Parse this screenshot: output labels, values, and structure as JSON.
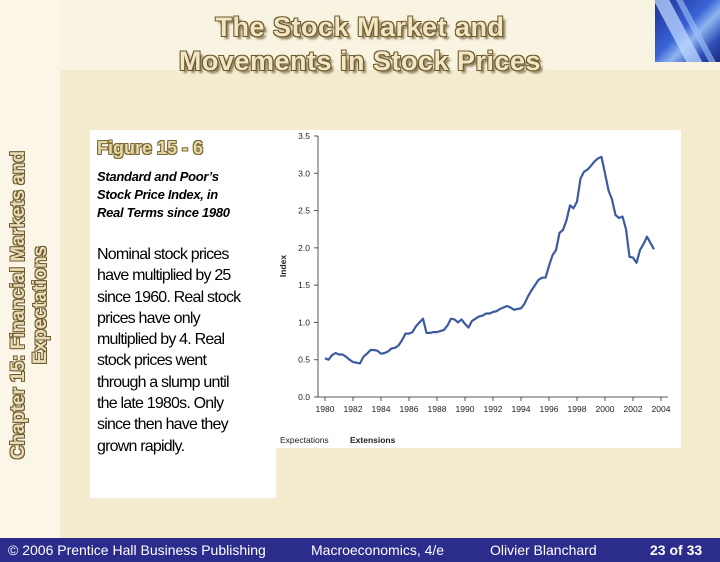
{
  "slide": {
    "title_line1": "The Stock Market and",
    "title_line2": "Movements in Stock Prices",
    "chapter_line1": "Chapter 15: Financial Markets and",
    "chapter_line2": "Expectations"
  },
  "figure": {
    "number": "Figure 15 - 6",
    "caption_line1": "Standard and Poor’s",
    "caption_line2": "Stock Price Index, in",
    "caption_line3": "Real Terms since 1980",
    "body_lines": [
      "Nominal stock prices",
      "have multiplied by 25",
      "since 1960.  Real stock",
      "prices have only",
      "multiplied by 4.  Real",
      "stock prices went",
      "through a slump until",
      "the late 1980s.  Only",
      "since then have they",
      "grown rapidly."
    ]
  },
  "footer": {
    "copyright": "© 2006 Prentice Hall Business Publishing",
    "book": "Macroeconomics, 4/e",
    "author": "Olivier Blanchard",
    "page": "23 of 33"
  },
  "chart_data": {
    "type": "line",
    "ylabel": "Index",
    "xlim": [
      1979.5,
      2004.5
    ],
    "ylim": [
      0,
      3.5
    ],
    "x_ticks": [
      1980,
      1982,
      1984,
      1986,
      1988,
      1990,
      1992,
      1994,
      1996,
      1998,
      2000,
      2002,
      2004
    ],
    "y_ticks": [
      "0.0",
      "0.5",
      "1.0",
      "1.5",
      "2.0",
      "2.5",
      "3.0",
      "3.5"
    ],
    "footer_left": "Expectations",
    "footer_right": "Extensions",
    "colors": {
      "line": "#3b5aa0",
      "axis": "#555555"
    },
    "series": [
      {
        "x": [
          1980,
          1980.25,
          1980.5,
          1980.75,
          1981,
          1981.25,
          1981.5,
          1981.75,
          1982,
          1982.25,
          1982.5,
          1982.75,
          1983,
          1983.25,
          1983.5,
          1983.75,
          1984,
          1984.25,
          1984.5,
          1984.75,
          1985,
          1985.25,
          1985.5,
          1985.75,
          1986,
          1986.25,
          1986.5,
          1986.75,
          1987,
          1987.25,
          1987.5,
          1987.75,
          1988,
          1988.5,
          1988.75,
          1989,
          1989.25,
          1989.5,
          1989.75,
          1990,
          1990.25,
          1990.5,
          1990.75,
          1991,
          1991.25,
          1991.5,
          1991.75,
          1992,
          1992.25,
          1992.5,
          1992.75,
          1993,
          1993.25,
          1993.5,
          1993.75,
          1994,
          1994.25,
          1994.5,
          1994.75,
          1995,
          1995.25,
          1995.5,
          1995.75,
          1996,
          1996.25,
          1996.5,
          1996.75,
          1997,
          1997.25,
          1997.5,
          1997.75,
          1998,
          1998.25,
          1998.5,
          1998.75,
          1999,
          1999.25,
          1999.5,
          1999.75,
          2000,
          2000.25,
          2000.5,
          2000.75,
          2001,
          2001.25,
          2001.5,
          2001.75,
          2002,
          2002.25,
          2002.5,
          2002.75,
          2003,
          2003.5
        ],
        "y": [
          0.52,
          0.5,
          0.56,
          0.59,
          0.57,
          0.57,
          0.54,
          0.5,
          0.47,
          0.46,
          0.45,
          0.54,
          0.58,
          0.63,
          0.63,
          0.62,
          0.58,
          0.59,
          0.61,
          0.65,
          0.66,
          0.69,
          0.76,
          0.85,
          0.85,
          0.87,
          0.95,
          1.0,
          1.05,
          0.86,
          0.86,
          0.87,
          0.87,
          0.9,
          0.96,
          1.05,
          1.04,
          1.0,
          1.04,
          0.98,
          0.93,
          1.02,
          1.05,
          1.08,
          1.09,
          1.12,
          1.12,
          1.14,
          1.15,
          1.18,
          1.2,
          1.22,
          1.2,
          1.17,
          1.18,
          1.19,
          1.25,
          1.35,
          1.43,
          1.5,
          1.57,
          1.6,
          1.6,
          1.76,
          1.9,
          1.97,
          2.2,
          2.24,
          2.37,
          2.57,
          2.53,
          2.62,
          2.93,
          3.02,
          3.05,
          3.1,
          3.16,
          3.2,
          3.22,
          3.0,
          2.77,
          2.65,
          2.44,
          2.4,
          2.42,
          2.25,
          1.88,
          1.87,
          1.8,
          1.97,
          2.05,
          2.15,
          1.98
        ]
      }
    ]
  }
}
